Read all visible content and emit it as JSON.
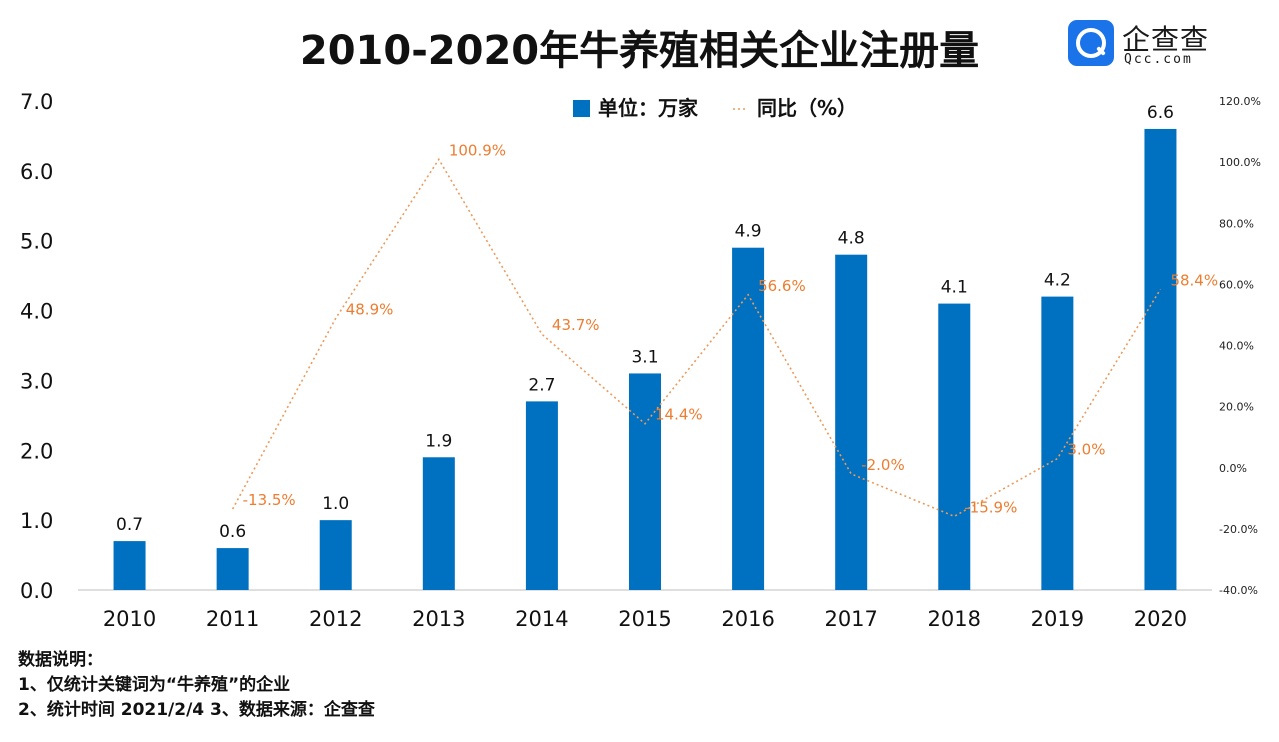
{
  "title": "2010-2020年牛养殖相关企业注册量",
  "logo": {
    "cn": "企查查",
    "en": "Qcc.com"
  },
  "notes": {
    "heading": "数据说明：",
    "line1": "1、仅统计关键词为“牛养殖”的企业",
    "line2": "2、统计时间 2021/2/4     3、数据来源：企查查"
  },
  "colors": {
    "bar": "#0070C0",
    "line": "#ED9A5A",
    "label": "#ED7D31"
  },
  "chart_data": {
    "type": "bar",
    "categories": [
      "2010",
      "2011",
      "2012",
      "2013",
      "2014",
      "2015",
      "2016",
      "2017",
      "2018",
      "2019",
      "2020"
    ],
    "series": [
      {
        "name": "单位：万家",
        "type": "bar",
        "axis": "left",
        "values": [
          0.7,
          0.6,
          1.0,
          1.9,
          2.7,
          3.1,
          4.9,
          4.8,
          4.1,
          4.2,
          6.6
        ],
        "labels": [
          "0.7",
          "0.6",
          "1.0",
          "1.9",
          "2.7",
          "3.1",
          "4.9",
          "4.8",
          "4.1",
          "4.2",
          "6.6"
        ]
      },
      {
        "name": "同比（%）",
        "type": "line",
        "style": "dotted",
        "axis": "right",
        "values": [
          null,
          -13.5,
          48.9,
          100.9,
          43.7,
          14.4,
          56.6,
          -2.0,
          -15.9,
          3.0,
          58.4
        ],
        "labels": [
          null,
          "-13.5%",
          "48.9%",
          "100.9%",
          "43.7%",
          "14.4%",
          "56.6%",
          "-2.0%",
          "-15.9%",
          "3.0%",
          "58.4%"
        ]
      }
    ],
    "yleft": {
      "ylim": [
        0,
        7
      ],
      "ticks": [
        "0.0",
        "1.0",
        "2.0",
        "3.0",
        "4.0",
        "5.0",
        "6.0",
        "7.0"
      ]
    },
    "yright": {
      "ylim": [
        -40,
        120
      ],
      "ticks": [
        "-40.0%",
        "-20.0%",
        "0.0%",
        "20.0%",
        "40.0%",
        "60.0%",
        "80.0%",
        "100.0%",
        "120.0%"
      ]
    },
    "legend": "top-center",
    "grid": false
  }
}
